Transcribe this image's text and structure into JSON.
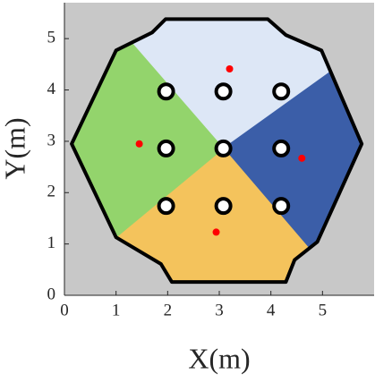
{
  "chart_data": {
    "type": "scatter",
    "xlabel": "X(m)",
    "ylabel": "Y(m)",
    "xlim": [
      0,
      6
    ],
    "ylim": [
      0,
      5.7
    ],
    "xticks": [
      0,
      1,
      2,
      3,
      4,
      5
    ],
    "yticks": [
      0,
      1,
      2,
      3,
      4,
      5
    ],
    "x": [
      3.2,
      1.45,
      4.6,
      2.94
    ],
    "y": [
      4.41,
      2.95,
      2.67,
      1.23
    ],
    "color": "#ff0000",
    "background": "#c8c8c8",
    "boundary": {
      "x": [
        1.96,
        3.94,
        4.29,
        4.98,
        5.76,
        4.9,
        4.46,
        4.29,
        2.08,
        1.87,
        1.0,
        0.14,
        1.0,
        1.7
      ],
      "y": [
        5.38,
        5.38,
        5.07,
        4.77,
        2.95,
        1.04,
        0.69,
        0.26,
        0.26,
        0.61,
        1.13,
        2.95,
        4.77,
        5.12
      ]
    },
    "regions": [
      {
        "color": "#dde7f6",
        "x": [
          3.08,
          1.3,
          1.7,
          1.96,
          3.94,
          4.29,
          4.98,
          5.16
        ],
        "y": [
          2.86,
          4.92,
          5.12,
          5.38,
          5.38,
          5.07,
          4.77,
          4.36
        ]
      },
      {
        "color": "#3b5ea8",
        "x": [
          3.08,
          5.16,
          5.76,
          4.9,
          4.74
        ],
        "y": [
          2.86,
          4.36,
          2.95,
          1.04,
          0.91
        ]
      },
      {
        "color": "#f4c35c",
        "x": [
          3.08,
          4.74,
          4.46,
          4.29,
          2.08,
          1.87,
          1.0
        ],
        "y": [
          2.86,
          0.91,
          0.69,
          0.26,
          0.26,
          0.61,
          1.13
        ]
      },
      {
        "color": "#93d46c",
        "x": [
          3.08,
          1.0,
          0.14,
          1.0,
          1.3
        ],
        "y": [
          2.86,
          1.13,
          2.95,
          4.77,
          4.92
        ]
      }
    ],
    "obstacles": {
      "x": [
        1.97,
        3.08,
        4.2,
        1.97,
        3.08,
        4.2,
        1.97,
        3.08,
        4.2
      ],
      "y": [
        3.97,
        3.97,
        3.97,
        2.86,
        2.86,
        2.86,
        1.74,
        1.74,
        1.74
      ]
    }
  }
}
